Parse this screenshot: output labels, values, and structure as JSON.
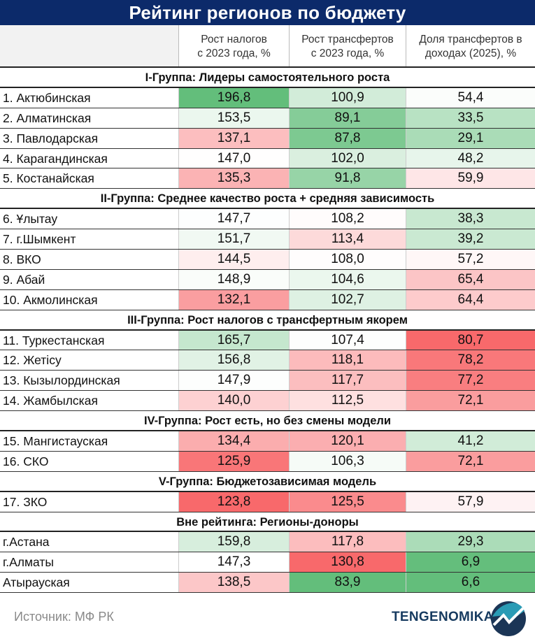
{
  "title": "Рейтинг регионов по бюджету",
  "chart_data": {
    "type": "table",
    "title": "Рейтинг регионов по бюджету",
    "columns": [
      "",
      "Рост налогов\nс 2023 года, %",
      "Рост трансфертов\nс 2023 года, %",
      "Доля трансфертов в\nдоходах (2025), %"
    ],
    "color_scale": {
      "good": "#63be7b",
      "mid": "#ffffff",
      "bad": "#f8696b",
      "direction": [
        "higher-is-better",
        "lower-is-better",
        "lower-is-better"
      ]
    },
    "groups": [
      {
        "name": "I-Группа: Лидеры самостоятельного роста",
        "rows": [
          [
            "1. Актюбинская",
            "196,8",
            "100,9",
            "54,4"
          ],
          [
            "2. Алматинская",
            "153,5",
            "89,1",
            "33,5"
          ],
          [
            "3. Павлодарская",
            "137,1",
            "87,8",
            "29,1"
          ],
          [
            "4. Карагандинская",
            "147,0",
            "102,0",
            "48,2"
          ],
          [
            "5. Костанайская",
            "135,3",
            "91,8",
            "59,9"
          ]
        ]
      },
      {
        "name": "II-Группа: Среднее качество роста + средняя зависимость",
        "rows": [
          [
            "6. Ұлытау",
            "147,7",
            "108,2",
            "38,3"
          ],
          [
            "7. г.Шымкент",
            "151,7",
            "113,4",
            "39,2"
          ],
          [
            "8. ВКО",
            "144,5",
            "108,0",
            "57,2"
          ],
          [
            "9. Абай",
            "148,9",
            "104,6",
            "65,4"
          ],
          [
            "10. Акмолинская",
            "132,1",
            "102,7",
            "64,4"
          ]
        ]
      },
      {
        "name": "III-Группа: Рост налогов с трансфертным якорем",
        "rows": [
          [
            "11. Туркестанская",
            "165,7",
            "107,4",
            "80,7"
          ],
          [
            "12. Жетісу",
            "156,8",
            "118,1",
            "78,2"
          ],
          [
            "13. Кызылординская",
            "147,9",
            "117,7",
            "77,2"
          ],
          [
            "14. Жамбылская",
            "140,0",
            "112,5",
            "72,1"
          ]
        ]
      },
      {
        "name": "IV-Группа: Рост есть, но без смены модели",
        "rows": [
          [
            "15. Мангистауская",
            "134,4",
            "120,1",
            "41,2"
          ],
          [
            "16. СКО",
            "125,9",
            "106,3",
            "72,1"
          ]
        ]
      },
      {
        "name": "V-Группа: Бюджетозависимая модель",
        "rows": [
          [
            "17. ЗКО",
            "123,8",
            "125,5",
            "57,9"
          ]
        ]
      },
      {
        "name": "Вне рейтинга: Регионы-доноры",
        "rows": [
          [
            "г.Астана",
            "159,8",
            "117,8",
            "29,3"
          ],
          [
            "г.Алматы",
            "147,3",
            "130,8",
            "6,9"
          ],
          [
            "Атырауская",
            "138,5",
            "83,9",
            "6,6"
          ]
        ]
      }
    ]
  },
  "footer": {
    "source": "Источник: МФ РК",
    "brand": "TENGENOMIKA"
  }
}
